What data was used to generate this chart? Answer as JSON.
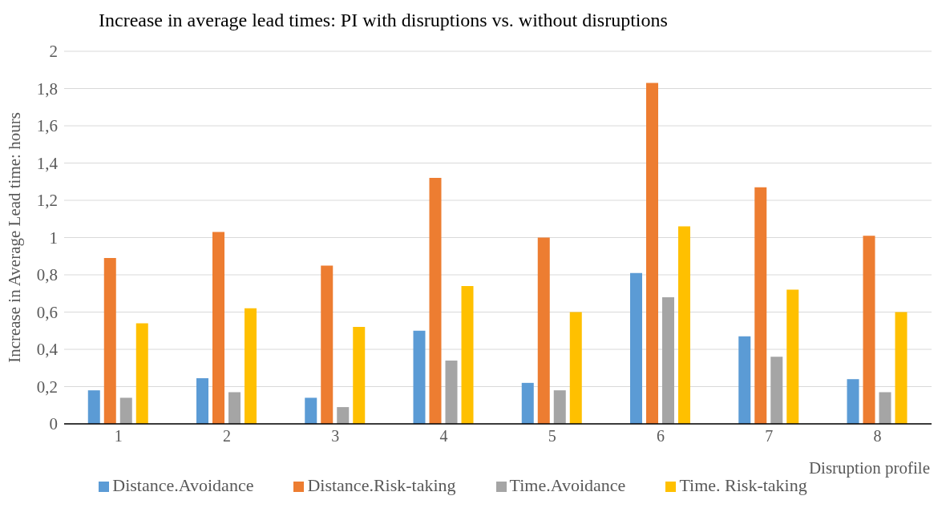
{
  "chart_data": {
    "type": "bar",
    "title": "Increase in average lead times: PI with disruptions vs. without disruptions",
    "xlabel": "Disruption profile",
    "ylabel": "Increase in Average Lead time: hours",
    "categories": [
      "1",
      "2",
      "3",
      "4",
      "5",
      "6",
      "7",
      "8"
    ],
    "series": [
      {
        "name": "Distance.Avoidance",
        "color": "#5b9bd5",
        "values": [
          0.18,
          0.245,
          0.14,
          0.5,
          0.22,
          0.81,
          0.47,
          0.24
        ]
      },
      {
        "name": "Distance.Risk-taking",
        "color": "#ed7d31",
        "values": [
          0.89,
          1.03,
          0.85,
          1.32,
          1.0,
          1.83,
          1.27,
          1.01
        ]
      },
      {
        "name": "Time.Avoidance",
        "color": "#a5a5a5",
        "values": [
          0.14,
          0.17,
          0.09,
          0.34,
          0.18,
          0.68,
          0.36,
          0.17
        ]
      },
      {
        "name": "Time. Risk-taking",
        "color": "#ffc000",
        "values": [
          0.54,
          0.62,
          0.52,
          0.74,
          0.6,
          1.06,
          0.72,
          0.6
        ]
      }
    ],
    "ylim": [
      0,
      2
    ],
    "yticks": [
      0,
      {
        "value": 0.2,
        "label": "0,2"
      },
      {
        "value": 0.4,
        "label": "0,4"
      },
      {
        "value": 0.6,
        "label": "0,6"
      },
      {
        "value": 0.8,
        "label": "0,8"
      },
      1,
      {
        "value": 1.2,
        "label": "1,2"
      },
      {
        "value": 1.4,
        "label": "1,4"
      },
      {
        "value": 1.6,
        "label": "1,6"
      },
      {
        "value": 1.8,
        "label": "1,8"
      },
      2
    ],
    "grid": "y",
    "legend": "bottom"
  }
}
